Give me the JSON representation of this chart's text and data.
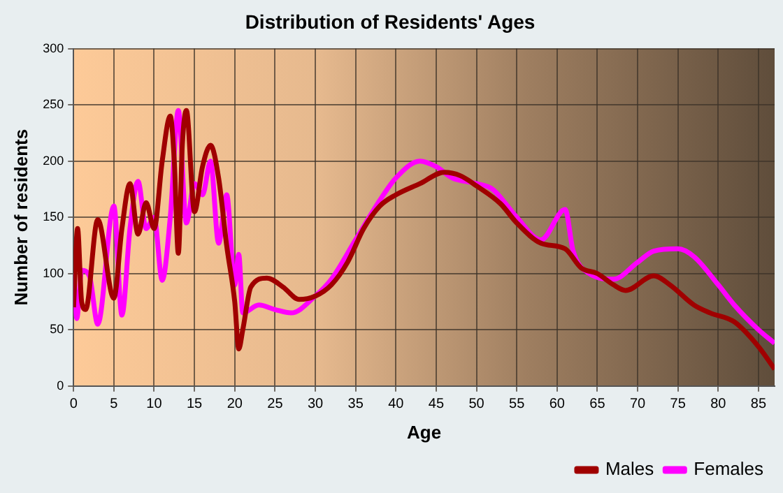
{
  "chart_data": {
    "type": "line",
    "title": "Distribution of Residents' Ages",
    "xlabel": "Age",
    "ylabel": "Number of residents",
    "xlim": [
      0,
      87
    ],
    "xticks": [
      0,
      5,
      10,
      15,
      20,
      25,
      30,
      35,
      40,
      45,
      50,
      55,
      60,
      65,
      70,
      75,
      80,
      85
    ],
    "ylim": [
      0,
      300
    ],
    "yticks": [
      0,
      50,
      100,
      150,
      200,
      250,
      300
    ],
    "grid": true,
    "legend": "bottom right",
    "marker": "none",
    "line_style": "solid",
    "series": [
      {
        "name": "Males",
        "color": "#a00000",
        "x": [
          0,
          0.5,
          1,
          1.5,
          3,
          5,
          6,
          7,
          8,
          9,
          10,
          11,
          12,
          12.5,
          13,
          13.5,
          14,
          15,
          16,
          17,
          18,
          19,
          20,
          20.5,
          21,
          22,
          24,
          26,
          28,
          30,
          32,
          34,
          36,
          38,
          40,
          43,
          46,
          48,
          50,
          53,
          55,
          58,
          61,
          63,
          65,
          67,
          68.5,
          72,
          74,
          77,
          79,
          82,
          85,
          87
        ],
        "values": [
          70,
          140,
          75,
          68,
          148,
          78,
          140,
          180,
          135,
          163,
          140,
          200,
          240,
          200,
          118,
          215,
          245,
          155,
          195,
          214,
          185,
          125,
          75,
          33,
          50,
          88,
          96,
          88,
          77,
          80,
          90,
          110,
          140,
          160,
          170,
          180,
          190,
          187,
          178,
          162,
          145,
          127,
          122,
          105,
          100,
          90,
          85,
          98,
          90,
          72,
          65,
          57,
          35,
          15
        ]
      },
      {
        "name": "Females",
        "color": "#ff00ff",
        "x": [
          0,
          0.4,
          1,
          2,
          3,
          5,
          6,
          7,
          8,
          9,
          10,
          11,
          12,
          13,
          14,
          15,
          16,
          17,
          18,
          19,
          20,
          20.5,
          21,
          23,
          25,
          27,
          30,
          32,
          35,
          38,
          40,
          43,
          45,
          47,
          50,
          52,
          55,
          58,
          61,
          62,
          64,
          67,
          70,
          72,
          75,
          77,
          80,
          82,
          85,
          87
        ],
        "values": [
          100,
          60,
          103,
          97,
          55,
          160,
          63,
          140,
          182,
          140,
          150,
          94,
          150,
          245,
          145,
          180,
          170,
          200,
          127,
          170,
          90,
          117,
          65,
          72,
          68,
          65,
          80,
          95,
          130,
          165,
          185,
          200,
          195,
          185,
          180,
          175,
          150,
          130,
          157,
          120,
          100,
          95,
          110,
          120,
          122,
          115,
          90,
          72,
          50,
          38
        ]
      }
    ]
  }
}
